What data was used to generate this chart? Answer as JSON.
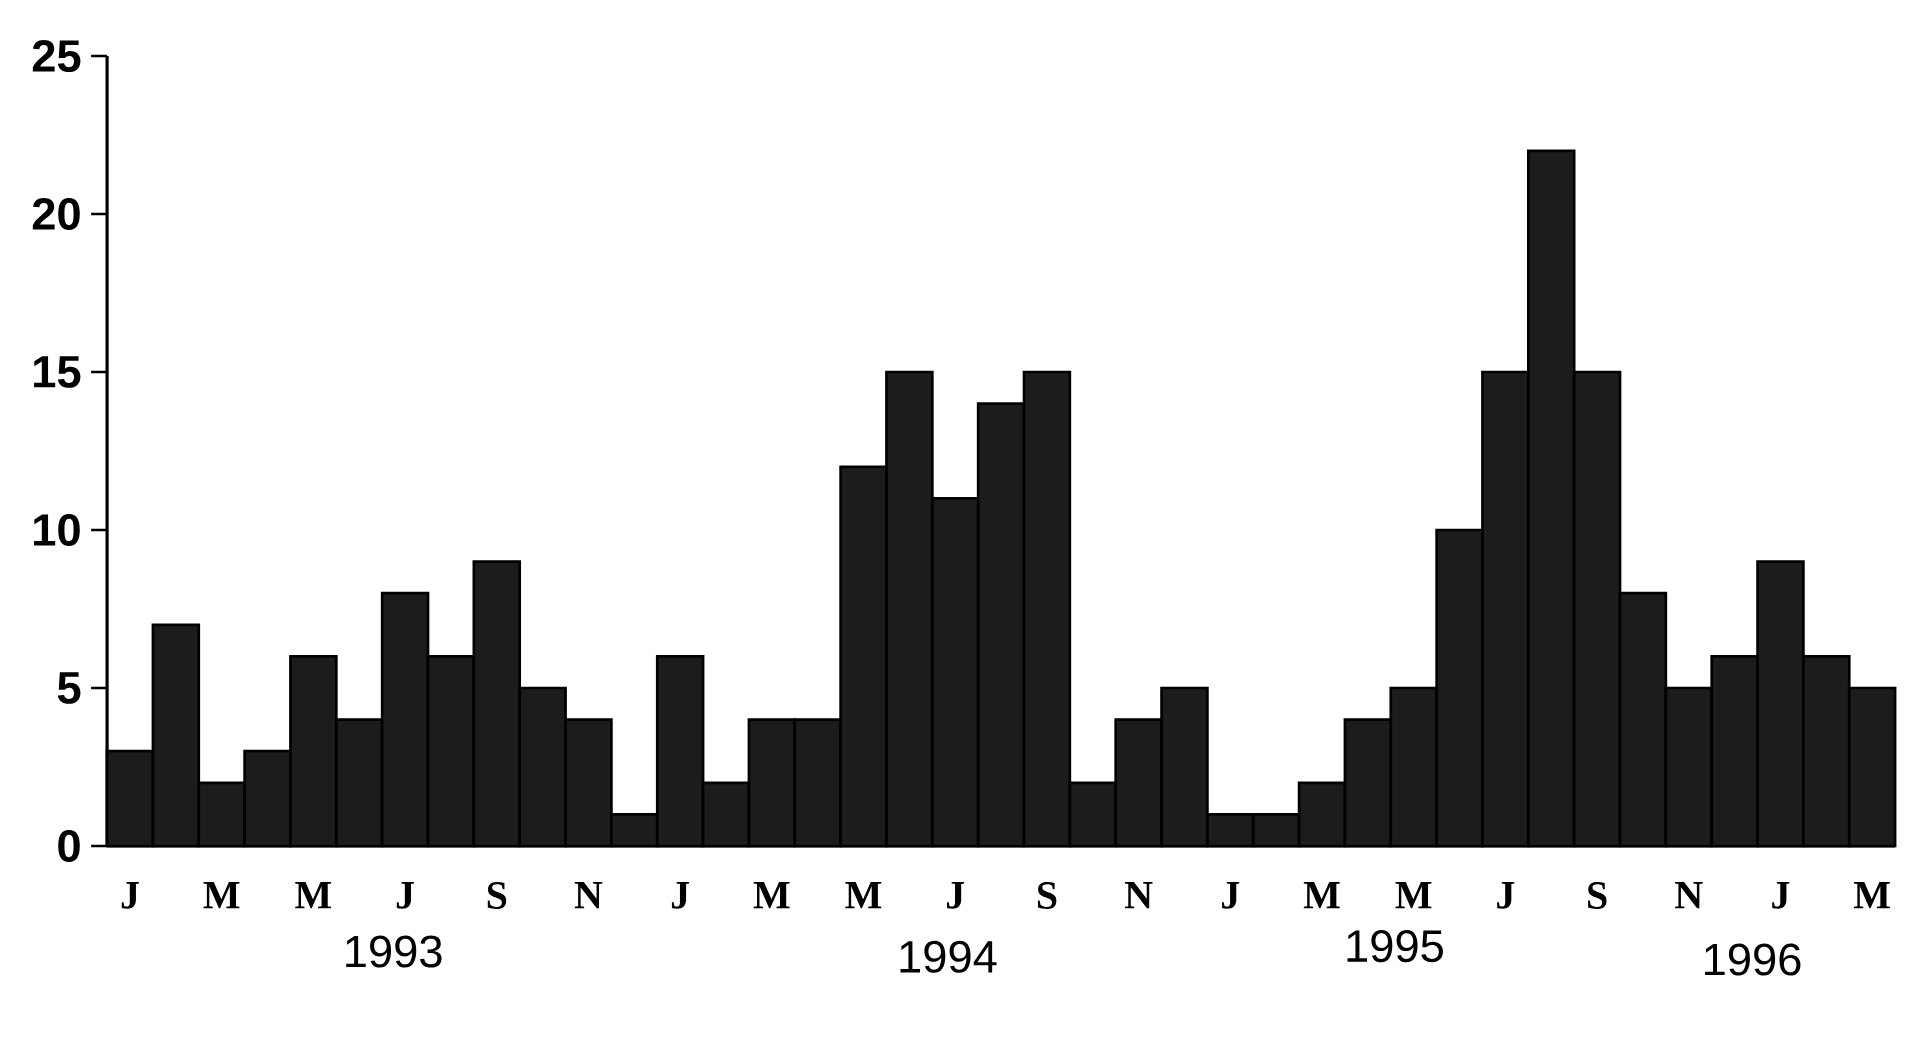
{
  "chart_data": {
    "type": "bar",
    "categories": [
      "J",
      null,
      "M",
      null,
      "M",
      null,
      "J",
      null,
      "S",
      null,
      "N",
      null,
      "J",
      null,
      "M",
      null,
      "M",
      null,
      "J",
      null,
      "S",
      null,
      "N",
      null,
      "J",
      null,
      "M",
      null,
      "M",
      null,
      "J",
      null,
      "S",
      null,
      "N",
      null,
      "J",
      null,
      "M"
    ],
    "values": [
      3,
      7,
      2,
      3,
      6,
      4,
      8,
      6,
      9,
      5,
      4,
      1,
      6,
      2,
      4,
      4,
      12,
      15,
      11,
      14,
      15,
      2,
      4,
      5,
      1,
      1,
      2,
      4,
      5,
      10,
      15,
      22,
      15,
      8,
      5,
      6,
      9,
      6,
      5
    ],
    "color": "#1c1c1c",
    "ylim": [
      0,
      25
    ],
    "yticks": [
      0,
      5,
      10,
      15,
      20,
      25
    ],
    "annotations": [
      "1993",
      "1994",
      "1995",
      "1996"
    ]
  }
}
